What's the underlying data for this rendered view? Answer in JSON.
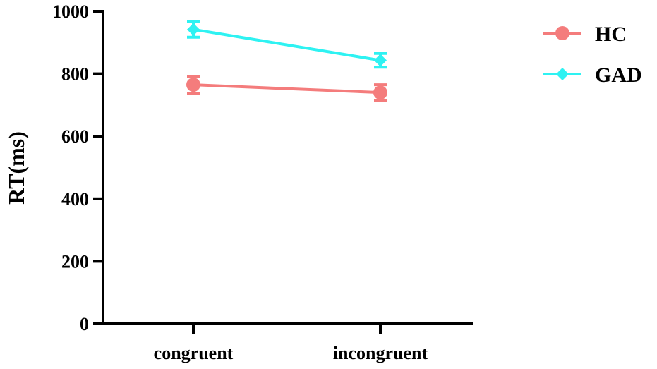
{
  "chart_data": {
    "type": "line",
    "title": "",
    "xlabel": "",
    "ylabel": "RT(ms)",
    "categories": [
      "congruent",
      "incongruent"
    ],
    "ylim": [
      0,
      1000
    ],
    "yticks": [
      0,
      200,
      400,
      600,
      800,
      1000
    ],
    "grid": false,
    "legend_position": "top-right",
    "series": [
      {
        "name": "HC",
        "values": [
          765,
          740
        ],
        "error": [
          27,
          25
        ],
        "color": "#F47C7C",
        "marker": "circle"
      },
      {
        "name": "GAD",
        "values": [
          942,
          843
        ],
        "error": [
          25,
          22
        ],
        "color": "#2EF2F2",
        "marker": "diamond"
      }
    ]
  }
}
